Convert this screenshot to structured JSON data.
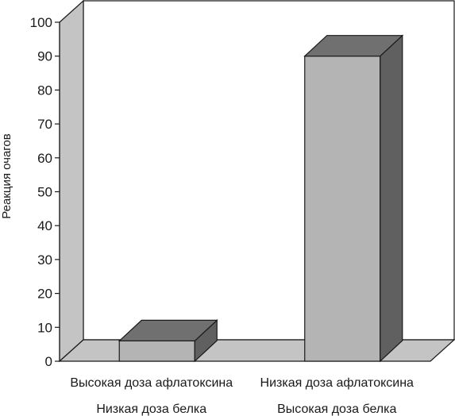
{
  "chart_data": {
    "type": "bar",
    "style": "3d",
    "title": "",
    "xlabel": "",
    "ylabel": "Реакция очагов",
    "ylim": [
      0,
      100
    ],
    "yticks": [
      0,
      10,
      20,
      30,
      40,
      50,
      60,
      70,
      80,
      90,
      100
    ],
    "grid": false,
    "legend": "none",
    "categories": [
      [
        "Высокая доза афлатоксина",
        "Низкая доза белка"
      ],
      [
        "Низкая доза афлатоксина",
        "Высокая доза белка"
      ]
    ],
    "values": [
      6,
      90
    ],
    "colors": {
      "bar_front": "#b4b4b4",
      "bar_side": "#606060",
      "bar_top": "#707070",
      "back_wall": "#ffffff",
      "side_wall": "#c4c4c4",
      "floor": "#c4c4c4",
      "outline": "#1a1a1a"
    }
  }
}
